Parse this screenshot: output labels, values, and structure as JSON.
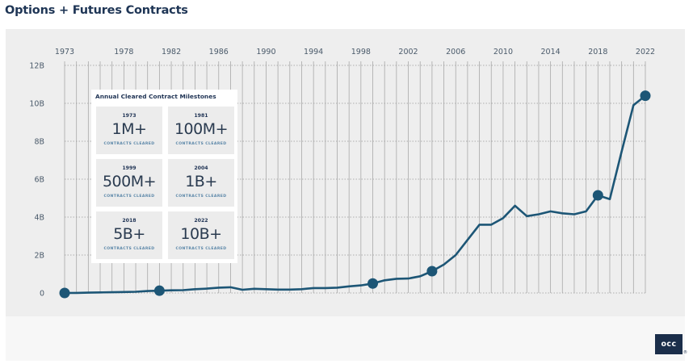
{
  "page": {
    "title": "Options + Futures Contracts",
    "logo_text": "occ",
    "logo_mark": "®"
  },
  "colors": {
    "line": "#1d5676",
    "marker": "#1d5676",
    "panel": "#eeeeee",
    "grid": "#a9a9a9"
  },
  "milestones": {
    "title": "Annual Cleared Contract Milestones",
    "items": [
      {
        "year": "1973",
        "value": "1M+",
        "label": "CONTRACTS CLEARED"
      },
      {
        "year": "1981",
        "value": "100M+",
        "label": "CONTRACTS CLEARED"
      },
      {
        "year": "1999",
        "value": "500M+",
        "label": "CONTRACTS CLEARED"
      },
      {
        "year": "2004",
        "value": "1B+",
        "label": "CONTRACTS CLEARED"
      },
      {
        "year": "2018",
        "value": "5B+",
        "label": "CONTRACTS CLEARED"
      },
      {
        "year": "2022",
        "value": "10B+",
        "label": "CONTRACTS CLEARED"
      }
    ]
  },
  "chart_data": {
    "type": "line",
    "title": "Options + Futures Contracts",
    "xlabel": "",
    "ylabel": "",
    "xlim": [
      1973,
      2022
    ],
    "ylim": [
      0,
      12
    ],
    "x_ticks": [
      "1973",
      "1978",
      "1982",
      "1986",
      "1990",
      "1994",
      "1998",
      "2002",
      "2006",
      "2010",
      "2014",
      "2018",
      "2022"
    ],
    "y_ticks": [
      {
        "value": 0,
        "label": "0"
      },
      {
        "value": 2,
        "label": "2B"
      },
      {
        "value": 4,
        "label": "4B"
      },
      {
        "value": 6,
        "label": "6B"
      },
      {
        "value": 8,
        "label": "8B"
      },
      {
        "value": 10,
        "label": "10B"
      },
      {
        "value": 12,
        "label": "12B"
      }
    ],
    "x_axis_position": "top",
    "grid": true,
    "unit": "billions of contracts",
    "series": [
      {
        "x": [
          1973,
          1974,
          1975,
          1976,
          1977,
          1978,
          1979,
          1980,
          1981,
          1982,
          1983,
          1984,
          1985,
          1986,
          1987,
          1988,
          1989,
          1990,
          1991,
          1992,
          1993,
          1994,
          1995,
          1996,
          1997,
          1998,
          1999,
          2000,
          2001,
          2002,
          2003,
          2004,
          2005,
          2006,
          2007,
          2008,
          2009,
          2010,
          2011,
          2012,
          2013,
          2014,
          2015,
          2016,
          2017,
          2018,
          2019,
          2020,
          2021,
          2022
        ],
        "values": [
          0.001,
          0.006,
          0.018,
          0.03,
          0.04,
          0.05,
          0.065,
          0.1,
          0.12,
          0.14,
          0.15,
          0.2,
          0.23,
          0.28,
          0.3,
          0.17,
          0.22,
          0.2,
          0.18,
          0.18,
          0.2,
          0.26,
          0.26,
          0.28,
          0.35,
          0.4,
          0.5,
          0.67,
          0.75,
          0.76,
          0.88,
          1.15,
          1.5,
          2.0,
          2.8,
          3.6,
          3.6,
          3.95,
          4.6,
          4.05,
          4.15,
          4.3,
          4.2,
          4.15,
          4.3,
          5.15,
          4.95,
          7.47,
          9.9,
          10.4
        ]
      }
    ],
    "highlighted_points": [
      {
        "x": 1973,
        "y": 0.001
      },
      {
        "x": 1981,
        "y": 0.12
      },
      {
        "x": 1999,
        "y": 0.5
      },
      {
        "x": 2004,
        "y": 1.15
      },
      {
        "x": 2018,
        "y": 5.15
      },
      {
        "x": 2022,
        "y": 10.4
      }
    ]
  }
}
